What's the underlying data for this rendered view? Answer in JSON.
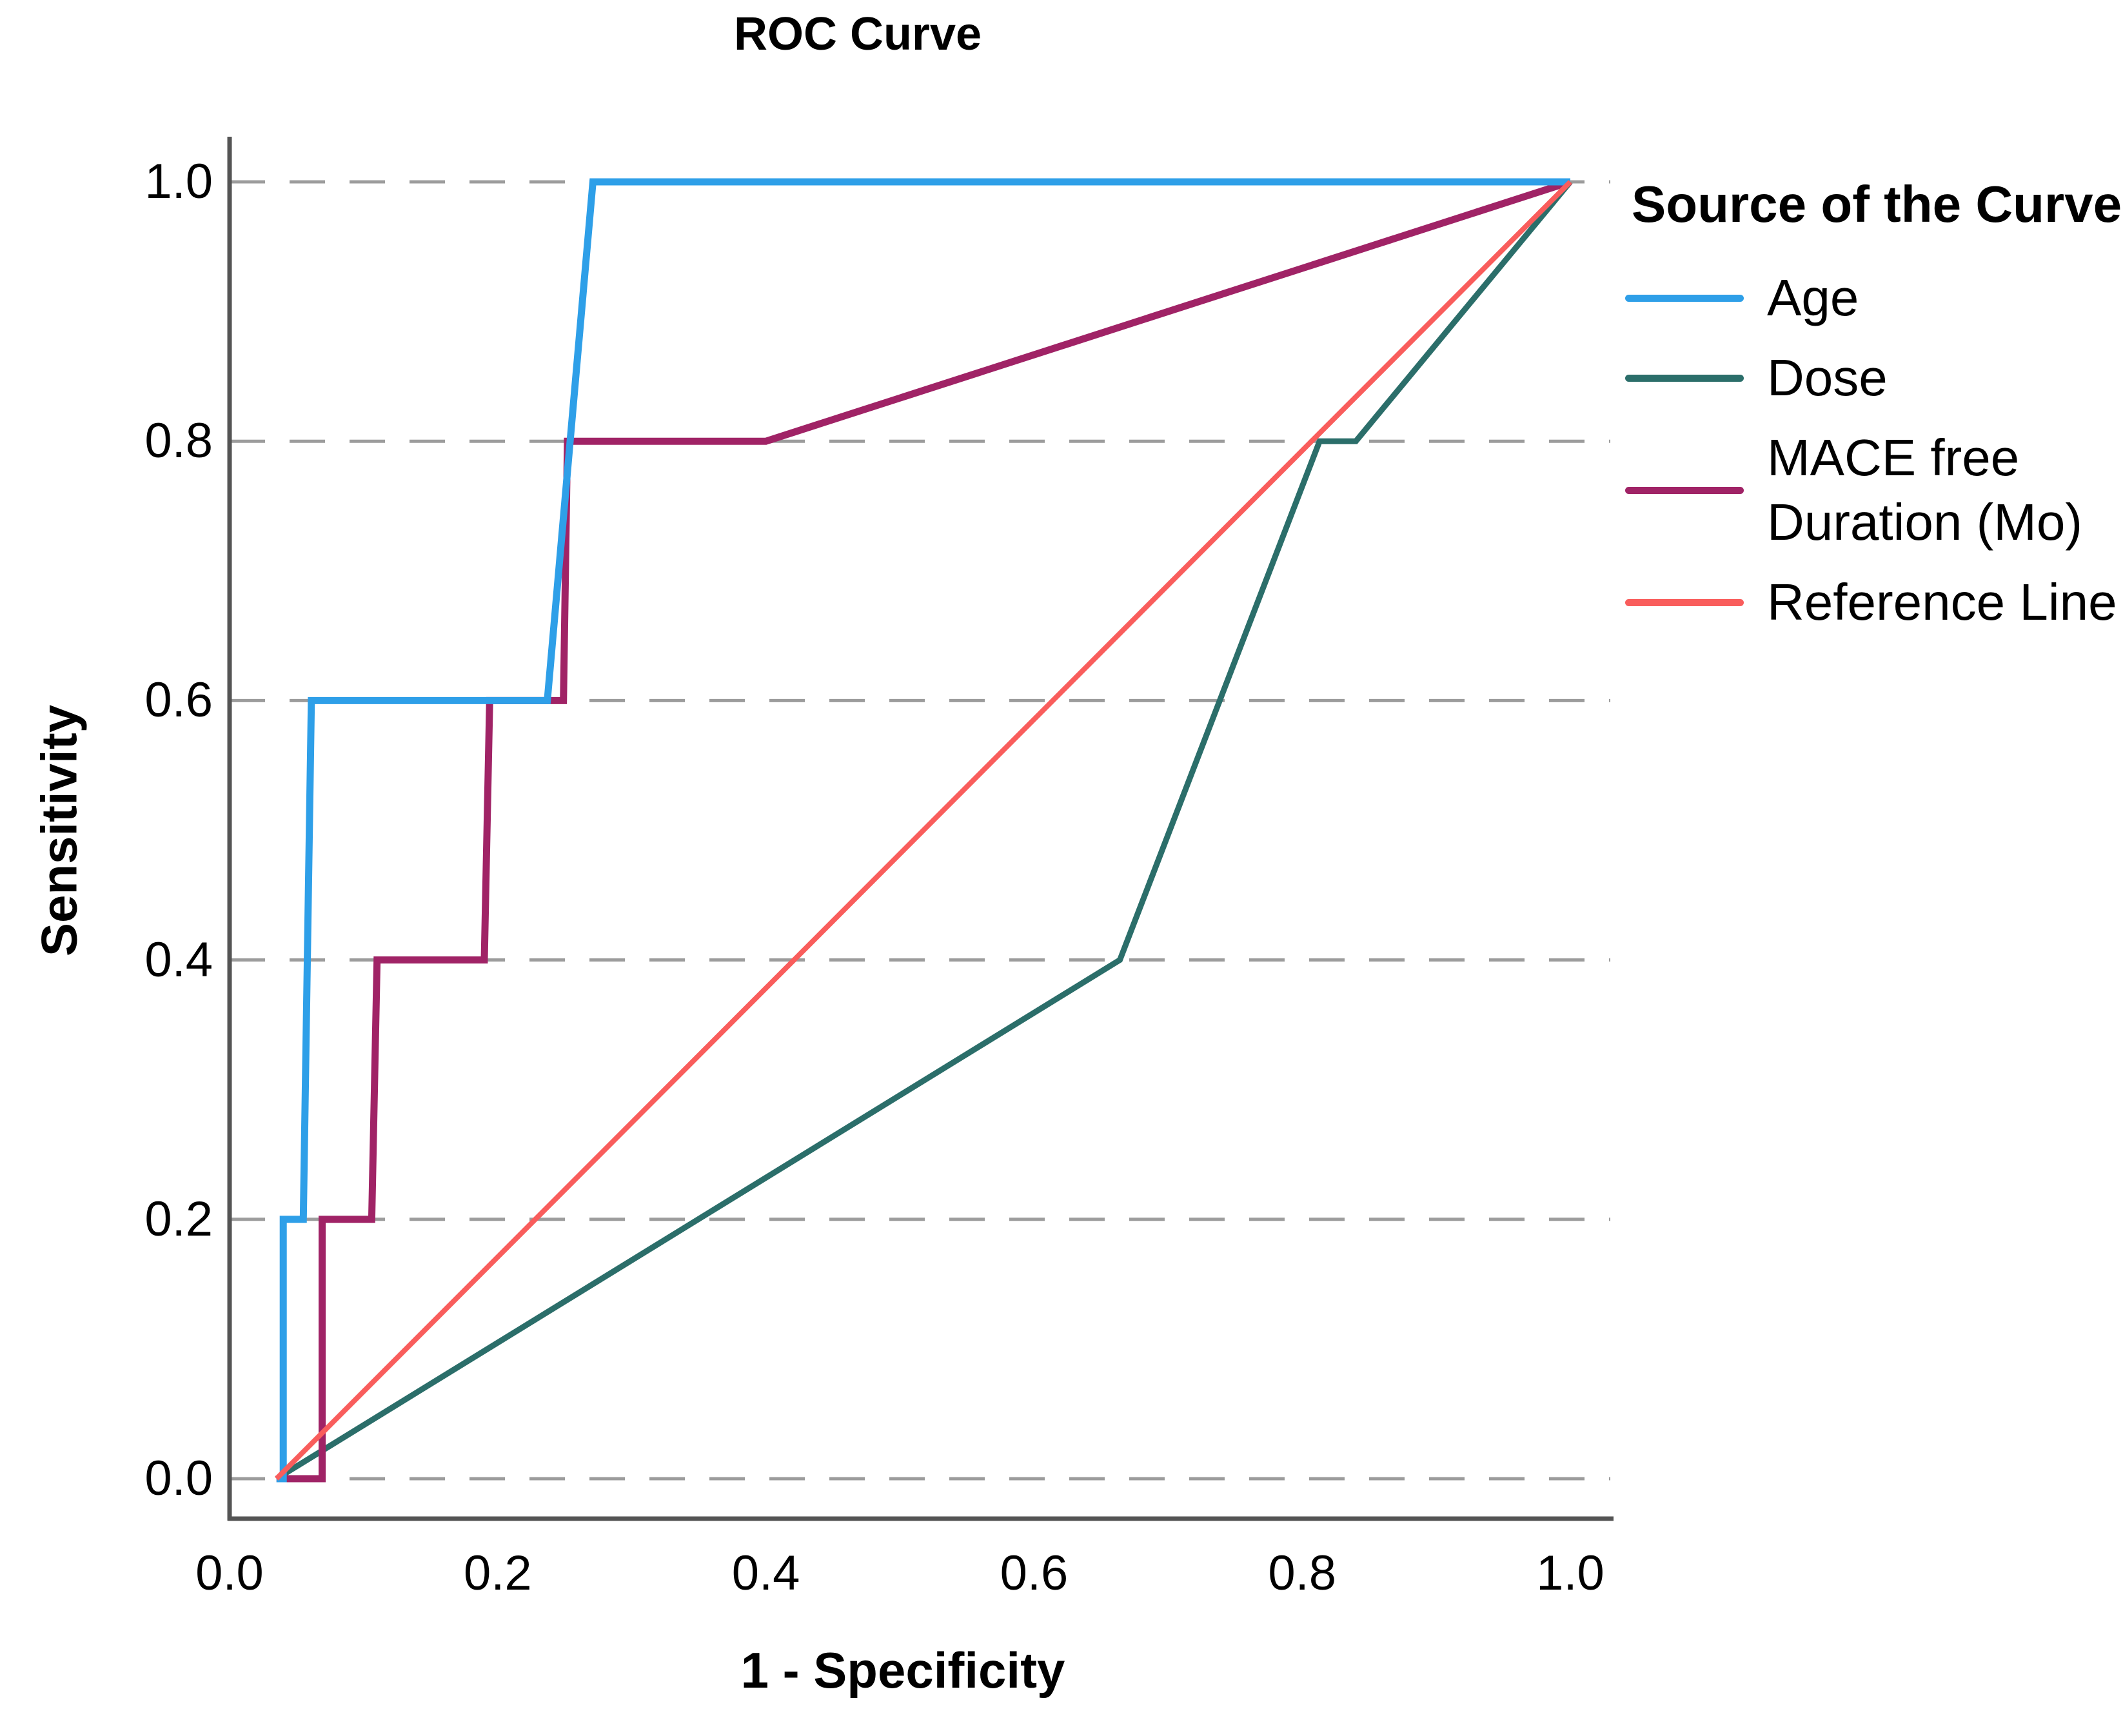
{
  "title": "ROC Curve",
  "axes": {
    "x_label": "1 - Specificity",
    "y_label": "Sensitivity",
    "x_ticks": [
      "0.0",
      "0.2",
      "0.4",
      "0.6",
      "0.8",
      "1.0"
    ],
    "y_ticks": [
      "0.0",
      "0.2",
      "0.4",
      "0.6",
      "0.8",
      "1.0"
    ]
  },
  "legend": {
    "title": "Source of the Curve",
    "items": [
      {
        "label": "Age",
        "color": "#2E9FE8"
      },
      {
        "label": "Dose",
        "color": "#2B6E6A"
      },
      {
        "label": "MACE free Duration (Mo)",
        "color": "#A02366"
      },
      {
        "label": "Reference Line",
        "color": "#F95D5C"
      }
    ]
  },
  "chart_data": {
    "type": "line",
    "title": "ROC Curve",
    "xlabel": "1 - Specificity",
    "ylabel": "Sensitivity",
    "xlim": [
      0.0,
      1.0
    ],
    "ylim": [
      0.0,
      1.0
    ],
    "x_tick_values": [
      0.0,
      0.2,
      0.4,
      0.6,
      0.8,
      1.0
    ],
    "y_tick_values": [
      0.0,
      0.2,
      0.4,
      0.6,
      0.8,
      1.0
    ],
    "grid": "horizontal-dashed-gray",
    "legend_position": "right",
    "colors": {
      "grid": "#9C9C9C",
      "axis": "#545454",
      "text": "#000000"
    },
    "series": [
      {
        "name": "Age",
        "color": "#2E9FE8",
        "stroke_width": 11,
        "points": [
          [
            0.035,
            0.0
          ],
          [
            0.04,
            0.0
          ],
          [
            0.04,
            0.2
          ],
          [
            0.055,
            0.2
          ],
          [
            0.061,
            0.6
          ],
          [
            0.237,
            0.6
          ],
          [
            0.271,
            1.0
          ],
          [
            1.0,
            1.0
          ]
        ]
      },
      {
        "name": "Dose",
        "color": "#2B6E6A",
        "stroke_width": 9,
        "points": [
          [
            0.035,
            0.0
          ],
          [
            0.664,
            0.4
          ],
          [
            0.813,
            0.8
          ],
          [
            0.84,
            0.8
          ],
          [
            1.0,
            1.0
          ]
        ]
      },
      {
        "name": "MACE free Duration (Mo)",
        "color": "#A02366",
        "stroke_width": 11,
        "points": [
          [
            0.035,
            0.0
          ],
          [
            0.069,
            0.0
          ],
          [
            0.069,
            0.2
          ],
          [
            0.106,
            0.2
          ],
          [
            0.11,
            0.4
          ],
          [
            0.19,
            0.4
          ],
          [
            0.194,
            0.6
          ],
          [
            0.249,
            0.6
          ],
          [
            0.252,
            0.8
          ],
          [
            0.4,
            0.8
          ],
          [
            1.0,
            1.0
          ]
        ]
      },
      {
        "name": "Reference Line",
        "color": "#F95D5C",
        "stroke_width": 8,
        "points": [
          [
            0.035,
            0.0
          ],
          [
            1.0,
            1.0
          ]
        ]
      }
    ]
  }
}
